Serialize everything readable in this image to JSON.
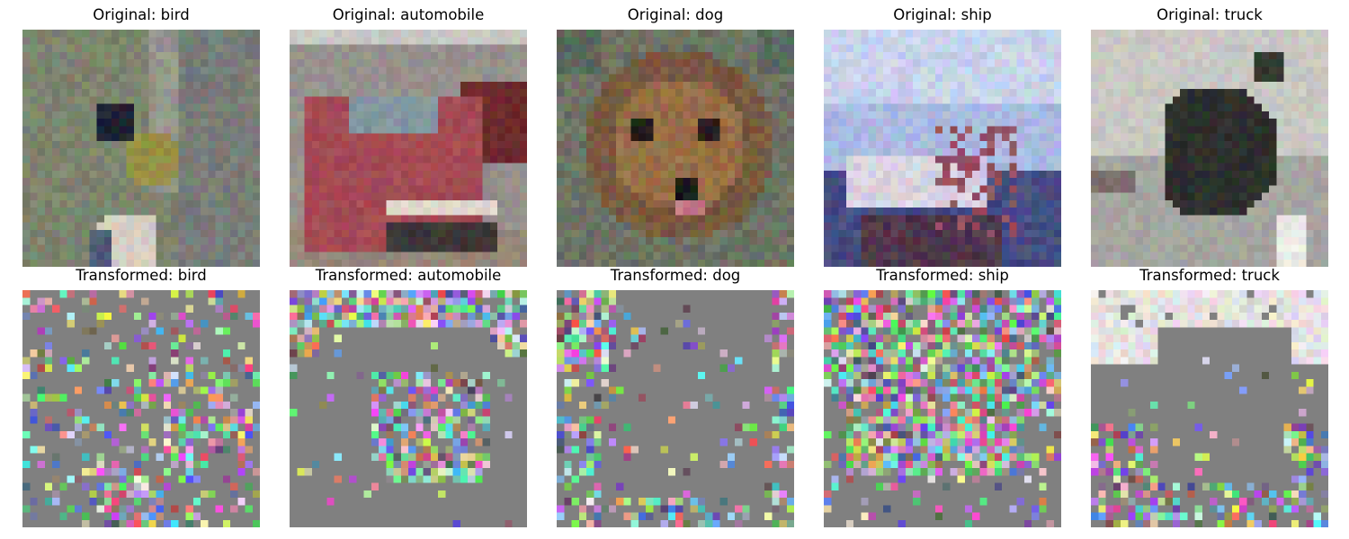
{
  "figure": {
    "panels": [
      {
        "row": "original",
        "title": "Original: bird",
        "subject": "bird"
      },
      {
        "row": "original",
        "title": "Original: automobile",
        "subject": "automobile"
      },
      {
        "row": "original",
        "title": "Original: dog",
        "subject": "dog"
      },
      {
        "row": "original",
        "title": "Original: ship",
        "subject": "ship"
      },
      {
        "row": "original",
        "title": "Original: truck",
        "subject": "truck"
      },
      {
        "row": "transformed",
        "title": "Transformed: bird",
        "subject": "bird"
      },
      {
        "row": "transformed",
        "title": "Transformed: automobile",
        "subject": "automobile"
      },
      {
        "row": "transformed",
        "title": "Transformed: dog",
        "subject": "dog"
      },
      {
        "row": "transformed",
        "title": "Transformed: ship",
        "subject": "ship"
      },
      {
        "row": "transformed",
        "title": "Transformed: truck",
        "subject": "truck"
      }
    ]
  }
}
